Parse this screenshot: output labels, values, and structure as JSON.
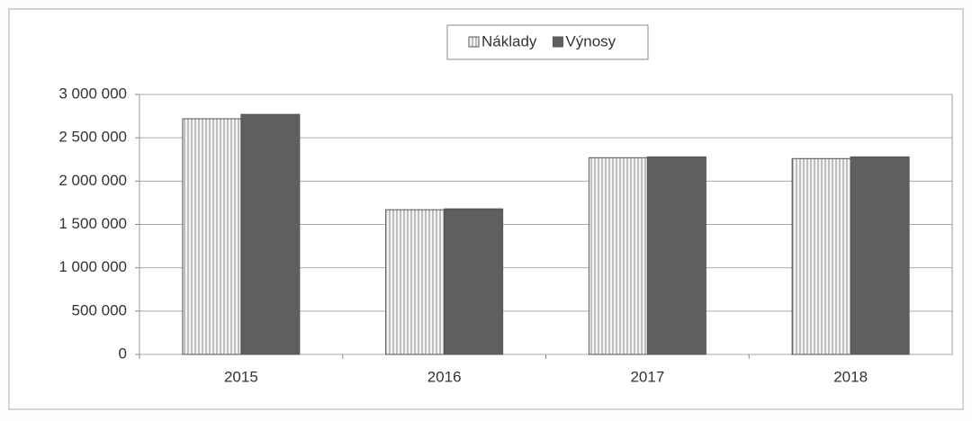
{
  "chart_data": {
    "type": "bar",
    "categories": [
      "2015",
      "2016",
      "2017",
      "2018"
    ],
    "series": [
      {
        "name": "Náklady",
        "color": "#f4f4f4",
        "values": [
          2720000,
          1670000,
          2270000,
          2260000
        ]
      },
      {
        "name": "Výnosy",
        "color": "#5f5f5f",
        "values": [
          2770000,
          1680000,
          2280000,
          2280000
        ]
      }
    ],
    "ylim": [
      0,
      3000000
    ],
    "yticks": [
      0,
      {
        "value": 500000,
        "label": "500 000"
      },
      {
        "value": 1000000,
        "label": "1 000 000"
      },
      {
        "value": 1500000,
        "label": "1 500 000"
      },
      {
        "value": 2000000,
        "label": "2 000 000"
      },
      {
        "value": 2500000,
        "label": "2 500 000"
      },
      {
        "value": 3000000,
        "label": "3 000 000"
      }
    ],
    "grid": true,
    "legend": "top"
  }
}
